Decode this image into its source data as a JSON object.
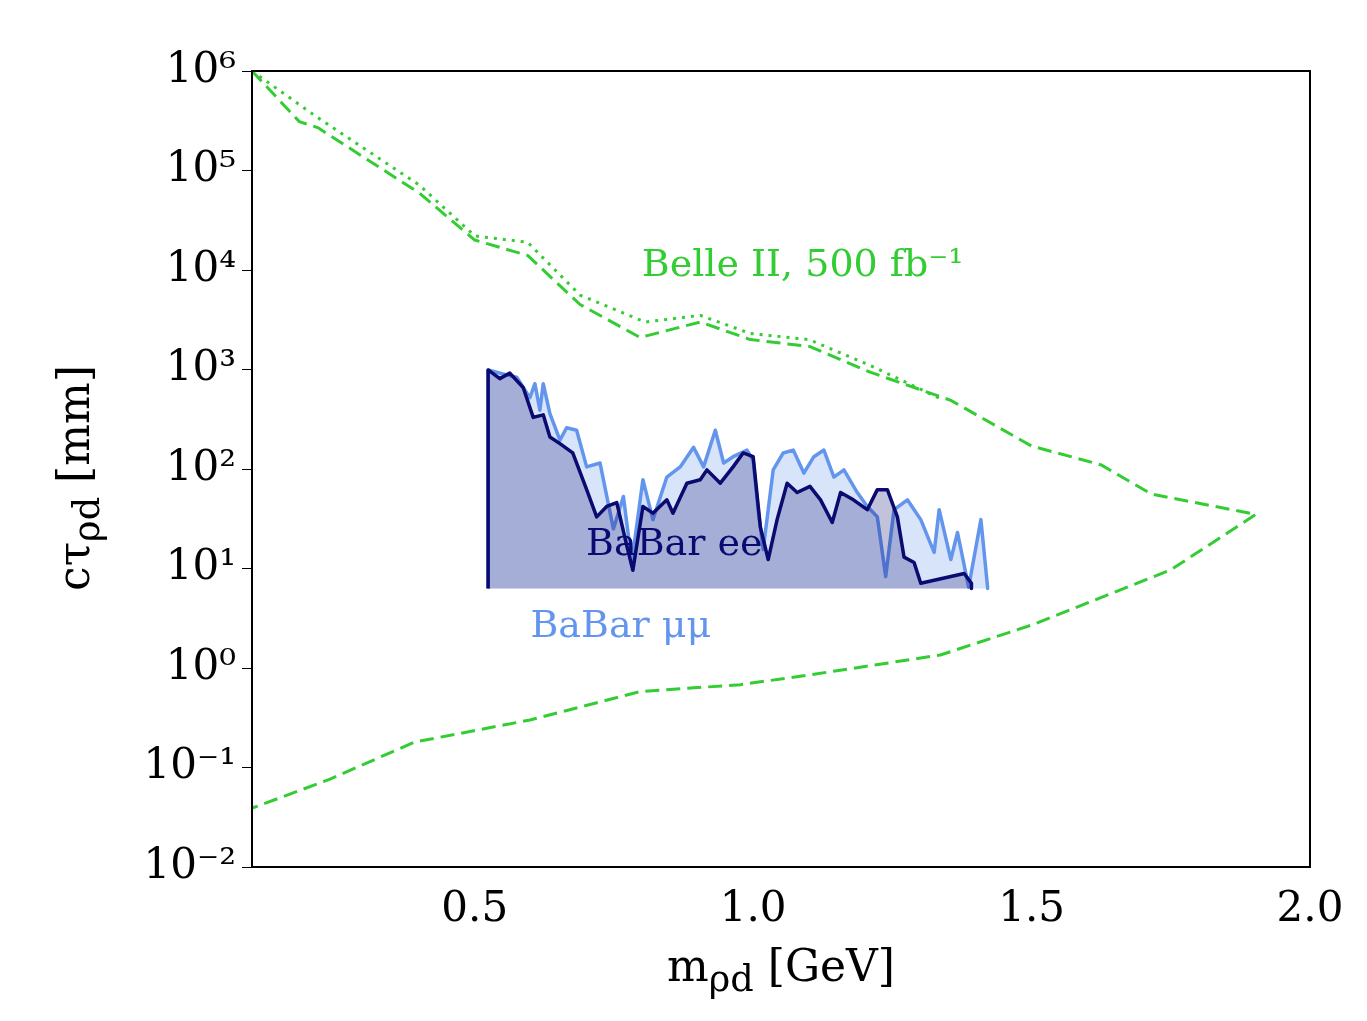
{
  "chart_data": {
    "type": "line",
    "xlabel": "m$_{ρd}$ [GeV]",
    "ylabel": "cτ$_{ρd}$ [mm]",
    "xlim": [
      0.1,
      2.0
    ],
    "xticks": [
      0.5,
      {
        "value": 1.0,
        "label": "1.0"
      },
      {
        "value": 1.5,
        "label": "1.5"
      },
      {
        "value": 2.0,
        "label": "2.0"
      }
    ],
    "ylim": [
      0.01,
      1000000
    ],
    "log": "y",
    "yticks": [
      {
        "value": 0.01,
        "label": "10⁻²"
      },
      {
        "value": 0.1,
        "label": "10⁻¹"
      },
      {
        "value": 1,
        "label": "10⁰"
      },
      {
        "value": 10,
        "label": "10¹"
      },
      {
        "value": 100,
        "label": "10²"
      },
      {
        "value": 1000,
        "label": "10³"
      },
      {
        "value": 10000,
        "label": "10⁴"
      },
      {
        "value": 100000,
        "label": "10⁵"
      },
      {
        "value": 1000000,
        "label": "10⁶"
      }
    ],
    "grid": false,
    "legend": false,
    "marker": "none",
    "series": [
      {
        "name": "Belle II, 500 fb⁻¹",
        "color": "#33cc33",
        "line_style": "dashed",
        "x": [
          0.1,
          0.185,
          0.218,
          0.401,
          0.5,
          0.595,
          0.689,
          0.797,
          0.905,
          0.995,
          1.102,
          1.21,
          1.355,
          1.5,
          1.625,
          1.715,
          1.903,
          1.75,
          1.5,
          1.336,
          1.1,
          0.977,
          0.797,
          0.599,
          0.392,
          0.239,
          0.1
        ],
        "values": [
          1000000,
          310000,
          270000,
          59000,
          20000,
          14000,
          4500,
          2100,
          3000,
          2000,
          1700,
          940,
          490,
          170,
          110,
          56,
          35,
          9.7,
          2.7,
          1.35,
          0.85,
          0.68,
          0.58,
          0.3,
          0.18,
          0.076,
          0.039
        ]
      },
      {
        "color": "#33cc33",
        "line_style": "dotted",
        "x": [
          0.1,
          0.218,
          0.401,
          0.5,
          0.595,
          0.689,
          0.806,
          0.905,
          0.995,
          1.1,
          1.21,
          1.336
        ],
        "values": [
          1000000,
          340000,
          71000,
          22000,
          19000,
          5600,
          3000,
          3500,
          2300,
          2000,
          1100,
          510
        ]
      },
      {
        "name": "BaBar μμ",
        "type": "area",
        "color": "#6495ed",
        "line_style": "solid",
        "x": [
          0.524,
          0.524,
          0.576,
          0.587,
          0.599,
          0.608,
          0.617,
          0.623,
          0.635,
          0.653,
          0.665,
          0.683,
          0.701,
          0.725,
          0.749,
          0.767,
          0.782,
          0.802,
          0.82,
          0.845,
          0.869,
          0.893,
          0.911,
          0.932,
          0.947,
          0.964,
          0.989,
          1.0,
          1.009,
          1.018,
          1.036,
          1.054,
          1.072,
          1.091,
          1.109,
          1.127,
          1.145,
          1.163,
          1.187,
          1.205,
          1.223,
          1.238,
          1.253,
          1.277,
          1.301,
          1.325,
          1.334,
          1.355,
          1.367,
          1.387,
          1.409,
          1.421,
          1.421
        ],
        "values": [
          6.3,
          990,
          830,
          660,
          520,
          720,
          390,
          720,
          360,
          195,
          260,
          245,
          105,
          115,
          25,
          53,
          11.5,
          78,
          31,
          83,
          105,
          165,
          105,
          245,
          115,
          133,
          155,
          123,
          39,
          15.5,
          98,
          145,
          155,
          91,
          133,
          155,
          83,
          98,
          58,
          42,
          33,
          8.3,
          39,
          49,
          31,
          14.5,
          39,
          12.3,
          23,
          6.5,
          31,
          6.5,
          6.3
        ]
      },
      {
        "name": "BaBar ee",
        "type": "area",
        "color": "#0a0a70",
        "line_style": "solid",
        "x": [
          0.524,
          0.524,
          0.545,
          0.563,
          0.587,
          0.605,
          0.623,
          0.635,
          0.653,
          0.676,
          0.701,
          0.719,
          0.737,
          0.755,
          0.773,
          0.784,
          0.802,
          0.82,
          0.845,
          0.856,
          0.881,
          0.905,
          0.917,
          0.941,
          0.964,
          0.982,
          1.0,
          1.013,
          1.027,
          1.043,
          1.061,
          1.079,
          1.102,
          1.121,
          1.142,
          1.157,
          1.18,
          1.205,
          1.223,
          1.241,
          1.259,
          1.271,
          1.289,
          1.301,
          1.379,
          1.392,
          1.392
        ],
        "values": [
          6.3,
          990,
          810,
          920,
          660,
          330,
          350,
          210,
          180,
          145,
          62,
          33,
          42,
          46,
          17,
          9.6,
          42,
          36,
          49,
          36,
          72,
          78,
          98,
          72,
          105,
          145,
          133,
          26,
          12.3,
          31,
          72,
          58,
          67,
          49,
          29,
          58,
          49,
          39,
          62,
          62,
          33,
          13,
          11.5,
          7.1,
          8.9,
          7.1,
          6.3
        ]
      }
    ]
  }
}
